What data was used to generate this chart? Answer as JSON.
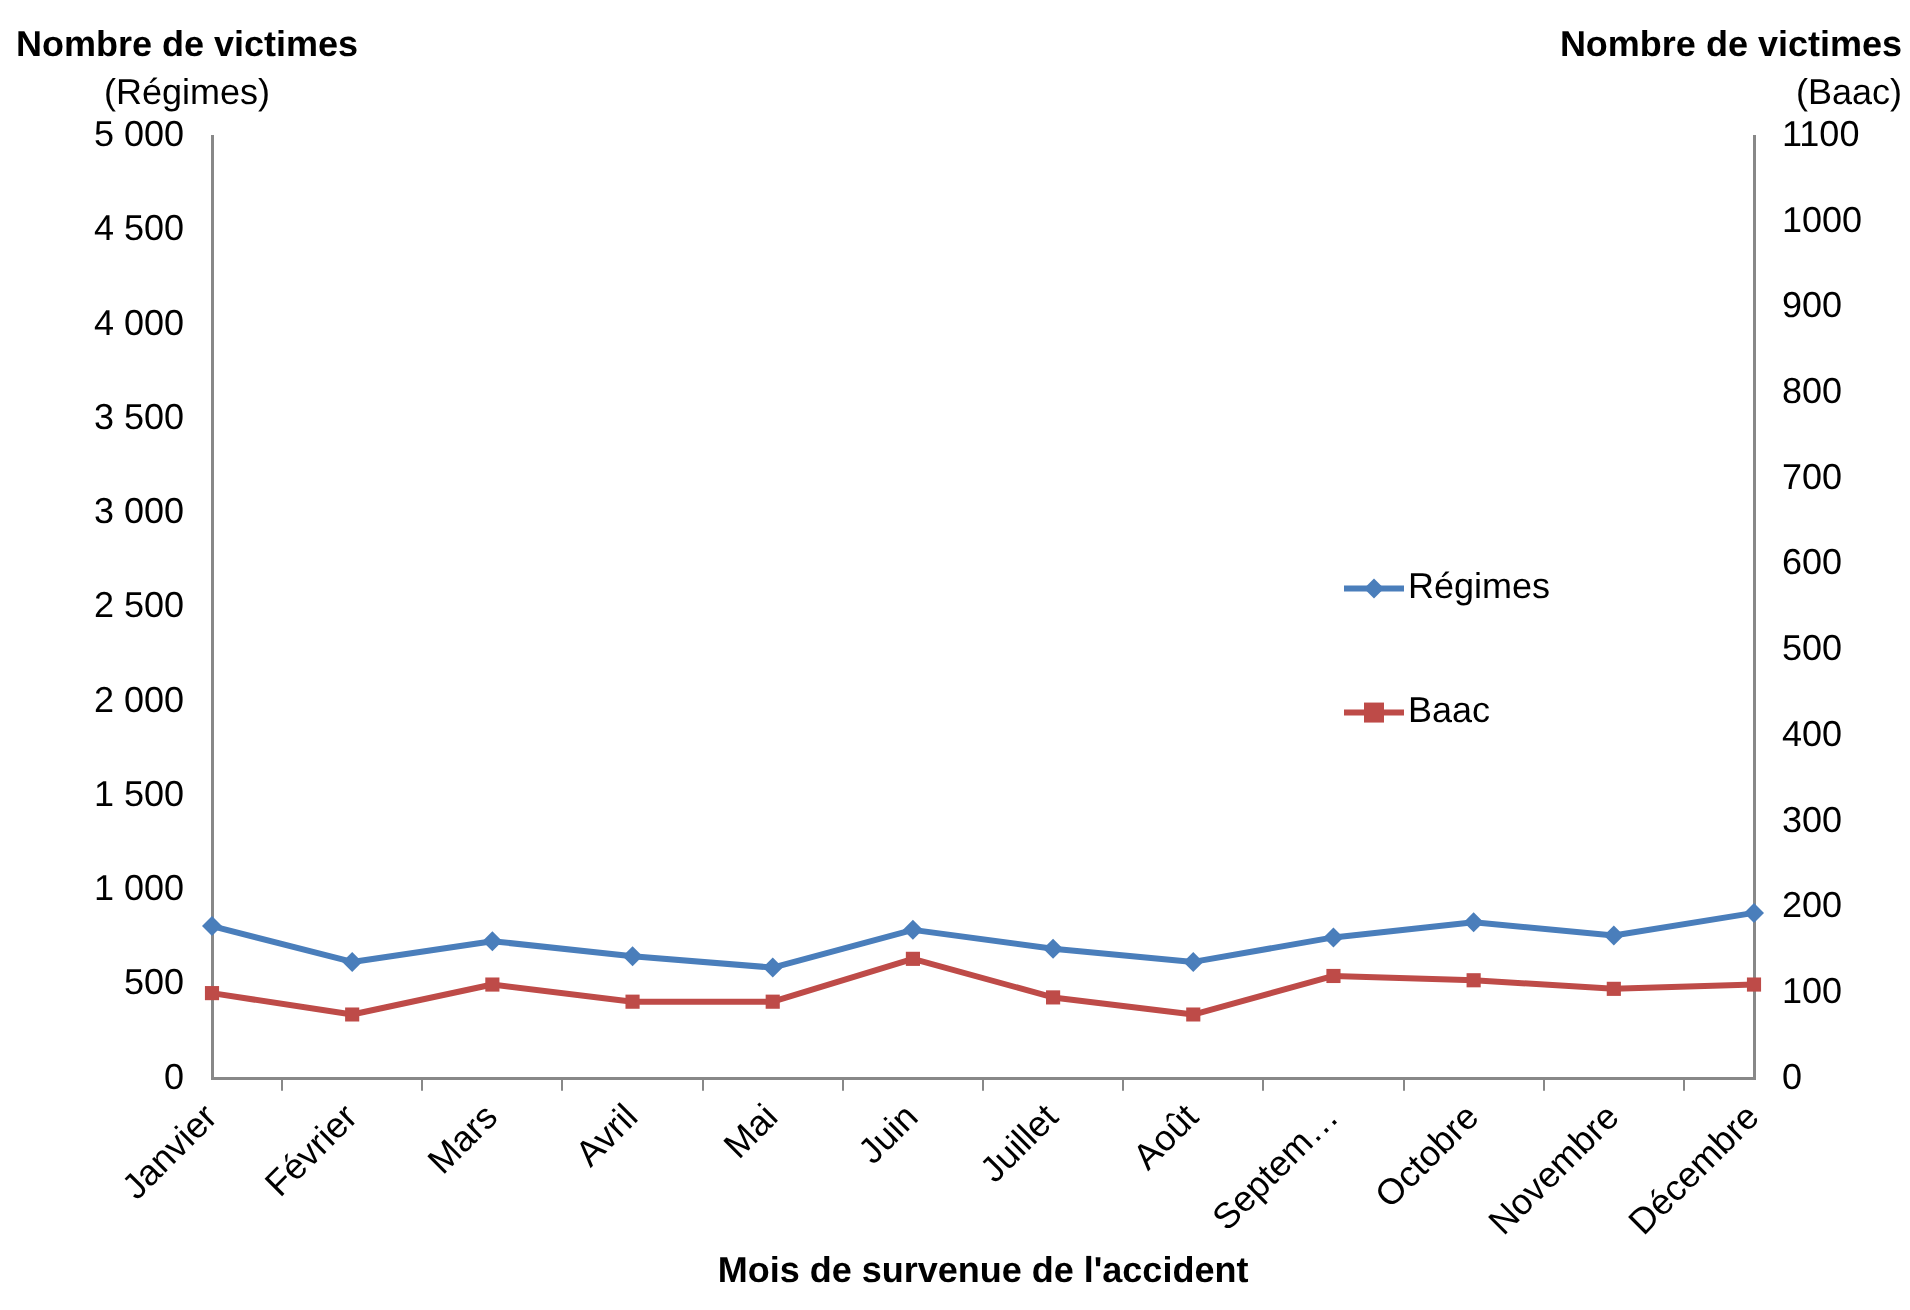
{
  "chart_data": {
    "type": "line",
    "xlabel": "Mois de survenue de l'accident",
    "ylabel": "Nombre de victimes\n(Régimes)",
    "y2label": "Nombre de victimes\n(Baac)",
    "categories": [
      "Janvier",
      "Février",
      "Mars",
      "Avril",
      "Mai",
      "Juin",
      "Juillet",
      "Août",
      "Septem…",
      "Octobre",
      "Novembre",
      "Décembre"
    ],
    "series": [
      {
        "name": "Régimes",
        "color": "#4a7ebb",
        "marker": "diamond",
        "values": [
          810,
          620,
          730,
          650,
          590,
          790,
          690,
          620,
          750,
          830,
          760,
          880
        ]
      },
      {
        "name": "Baac",
        "color": "#be4b48",
        "marker": "square",
        "axis": "y2",
        "values": [
          100,
          75,
          110,
          90,
          90,
          140,
          95,
          75,
          120,
          115,
          105,
          110
        ]
      }
    ],
    "ylim": [
      0,
      5000
    ],
    "yticks": [
      0,
      {
        "value": 500,
        "label": "500"
      },
      {
        "value": 1000,
        "label": "1 000"
      },
      {
        "value": 1500,
        "label": "1 500"
      },
      {
        "value": 2000,
        "label": "2 000"
      },
      {
        "value": 2500,
        "label": "2 500"
      },
      {
        "value": 3000,
        "label": "3 000"
      },
      {
        "value": 3500,
        "label": "3 500"
      },
      {
        "value": 4000,
        "label": "4 000"
      },
      {
        "value": 4500,
        "label": "4 500"
      },
      {
        "value": 5000,
        "label": "5 000"
      }
    ],
    "y2lim": [
      0,
      1100
    ],
    "y2ticks": [
      0,
      100,
      200,
      300,
      400,
      500,
      600,
      700,
      800,
      900,
      1000,
      1100
    ],
    "grid": false,
    "legend": "right",
    "line_style": "solid"
  }
}
